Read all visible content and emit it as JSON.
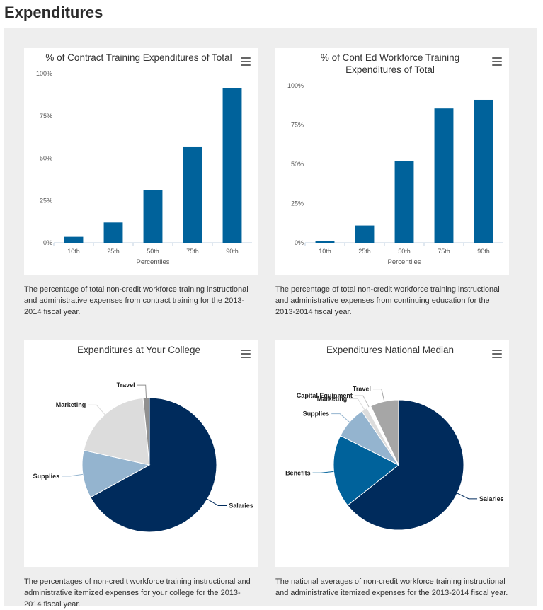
{
  "page": {
    "title": "Expenditures"
  },
  "cards": [
    {
      "description": "The percentage of total non-credit workforce training instructional and administrative expenses from contract training for the 2013-2014 fiscal year."
    },
    {
      "description": "The percentage of total non-credit workforce training instructional and administrative expenses from continuing education for the 2013-2014 fiscal year."
    },
    {
      "description": "The percentages of non-credit workforce training instructional and administrative itemized expenses for your college for the 2013-2014 fiscal year."
    },
    {
      "description": "The national averages of non-credit workforce training instructional and administrative itemized expenses for the 2013-2014 fiscal year."
    }
  ],
  "chart_data": [
    {
      "type": "bar",
      "title": "% of Contract Training Expenditures of Total",
      "title_lines": [
        "% of Contract Training Expenditures of Total"
      ],
      "xlabel": "Percentiles",
      "ylabel": "",
      "categories": [
        "10th",
        "25th",
        "50th",
        "75th",
        "90th"
      ],
      "values": [
        3.5,
        12,
        31,
        56.5,
        91.5
      ],
      "ylim": [
        0,
        100
      ],
      "yticks": [
        "0%",
        "25%",
        "50%",
        "75%",
        "100%"
      ],
      "color": "#00629b",
      "grid": false
    },
    {
      "type": "bar",
      "title": "% of Cont Ed Workforce Training Expenditures of Total",
      "title_lines": [
        "% of Cont Ed Workforce Training",
        "Expenditures of Total"
      ],
      "xlabel": "Percentiles",
      "ylabel": "",
      "categories": [
        "10th",
        "25th",
        "50th",
        "75th",
        "90th"
      ],
      "values": [
        1,
        11,
        52,
        85.5,
        91
      ],
      "ylim": [
        0,
        100
      ],
      "yticks": [
        "0%",
        "25%",
        "50%",
        "75%",
        "100%"
      ],
      "color": "#00629b",
      "grid": false
    },
    {
      "type": "pie",
      "title": "Expenditures at Your College",
      "title_lines": [
        "Expenditures at Your College"
      ],
      "slices": [
        {
          "label": "Salaries",
          "value": 67,
          "color": "#002b5c"
        },
        {
          "label": "Supplies",
          "value": 11.5,
          "color": "#94b4cf"
        },
        {
          "label": "Marketing",
          "value": 20,
          "color": "#dcdcdc"
        },
        {
          "label": "Travel",
          "value": 1.5,
          "color": "#909090"
        }
      ]
    },
    {
      "type": "pie",
      "title": "Expenditures National Median",
      "title_lines": [
        "Expenditures National Median"
      ],
      "slices": [
        {
          "label": "Salaries",
          "value": 64,
          "color": "#002b5c"
        },
        {
          "label": "Benefits",
          "value": 18,
          "color": "#00629b"
        },
        {
          "label": "Supplies",
          "value": 8,
          "color": "#94b4cf"
        },
        {
          "label": "Marketing",
          "value": 1.5,
          "color": "#dcdcdc"
        },
        {
          "label": "Capital Equipment",
          "value": 1,
          "color": "#ffffff"
        },
        {
          "label": "Travel",
          "value": 7,
          "color": "#a6a6a6"
        }
      ]
    }
  ]
}
